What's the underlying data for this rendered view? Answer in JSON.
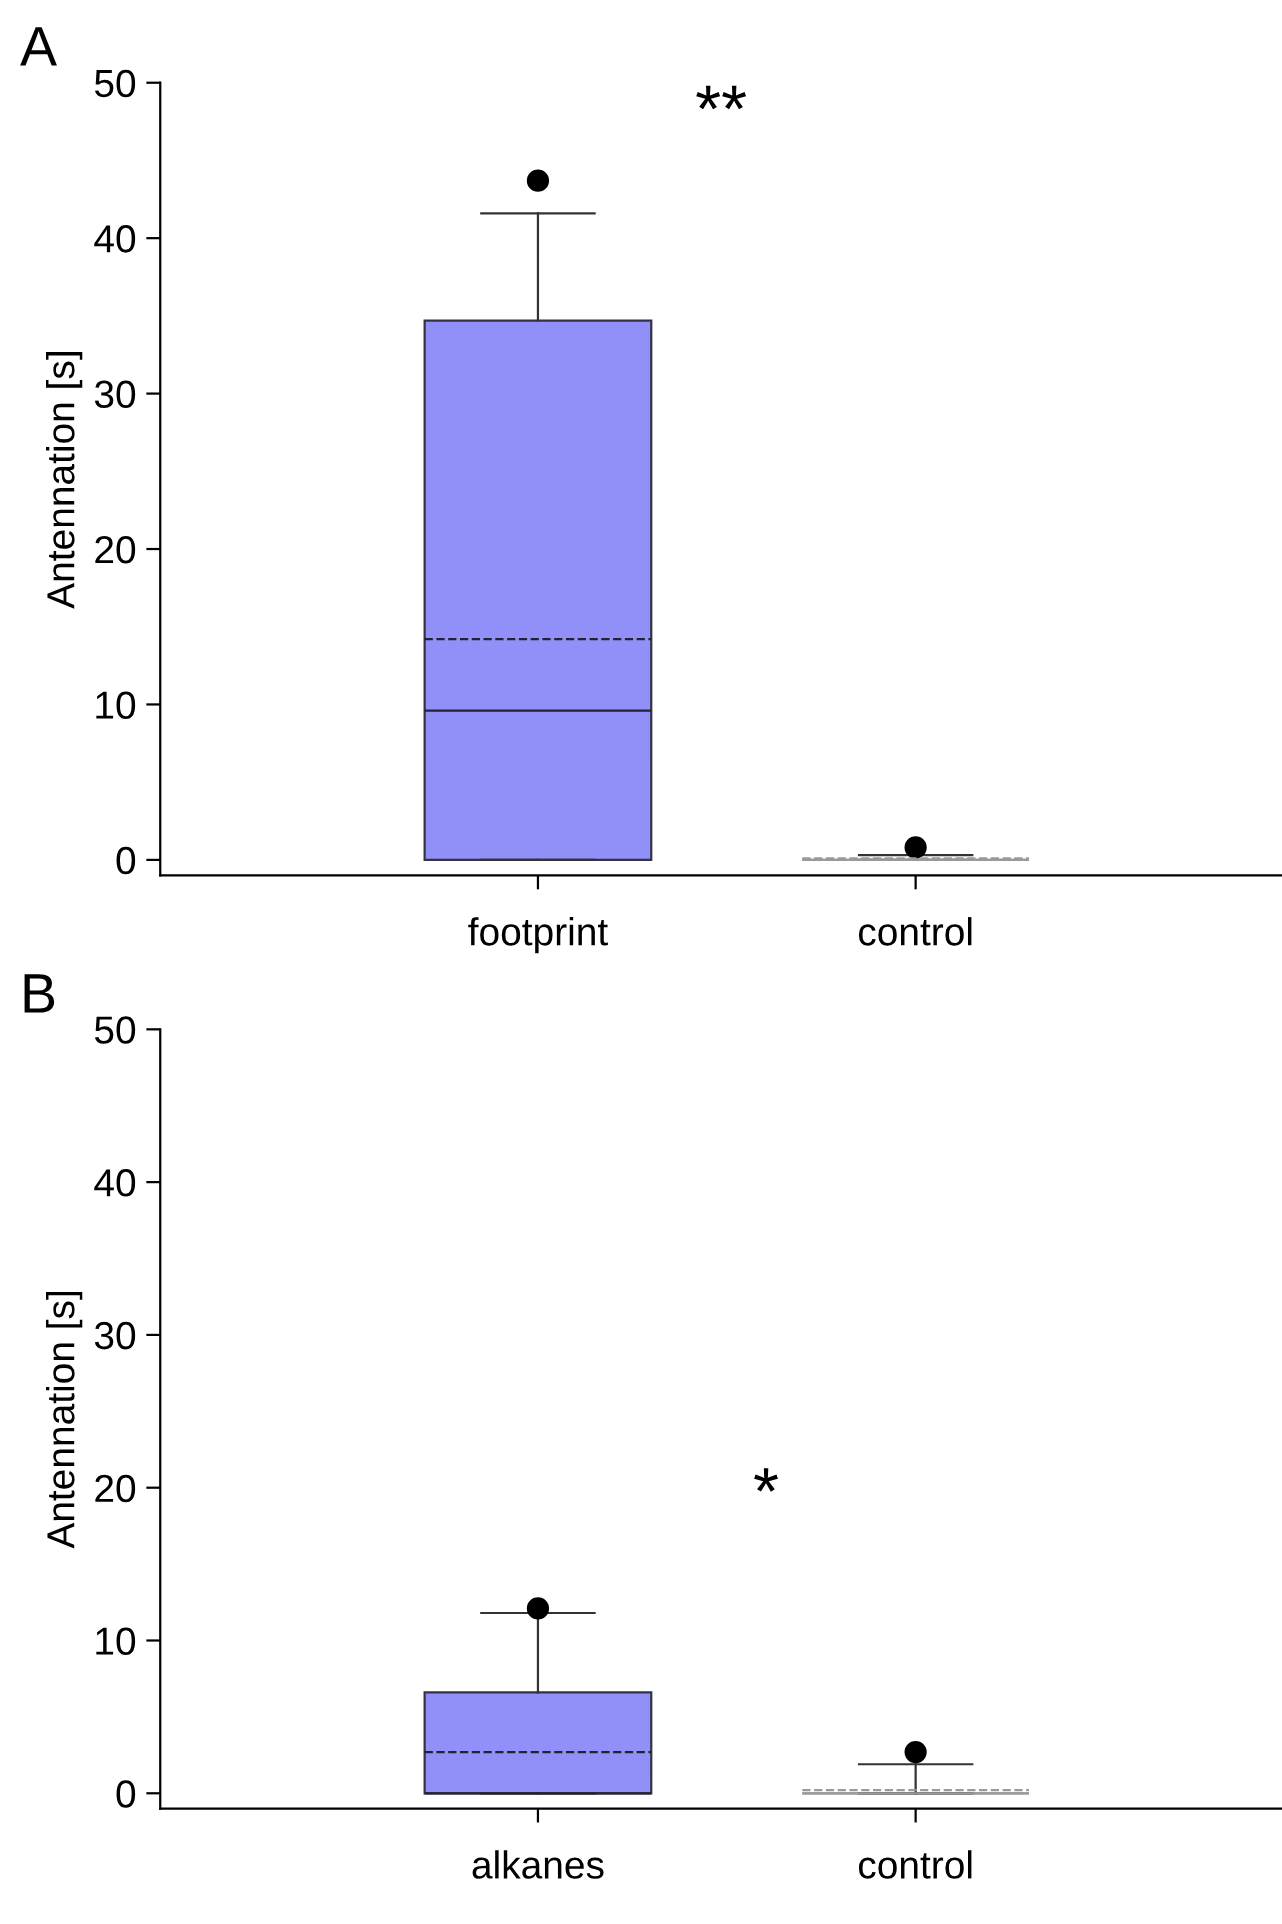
{
  "chart_data": [
    {
      "type": "box",
      "ylabel": "Antennation [s]",
      "categories": [
        "footprint",
        "control"
      ],
      "colors": [
        "#9090f8",
        "#999999"
      ],
      "ylim": [
        -1,
        50
      ],
      "yticks": [
        0,
        10,
        20,
        30,
        40,
        50
      ],
      "grid": false,
      "annotations": [
        "A",
        "**"
      ],
      "boxes": [
        {
          "low": 0,
          "q1": 0,
          "median": 9.6,
          "q3": 34.7,
          "high": 41.6,
          "mean": 14.2,
          "outliers": [
            43.7
          ]
        },
        {
          "low": 0,
          "q1": 0,
          "median": 0,
          "q3": 0,
          "high": 0.3,
          "mean": 0.1,
          "outliers": [
            0.8
          ]
        }
      ]
    },
    {
      "type": "box",
      "ylabel": "Antennation [s]",
      "categories": [
        "alkanes",
        "control"
      ],
      "colors": [
        "#9090f8",
        "#999999"
      ],
      "ylim": [
        -1,
        50
      ],
      "yticks": [
        0,
        10,
        20,
        30,
        40,
        50
      ],
      "grid": false,
      "annotations": [
        "B",
        "*"
      ],
      "boxes": [
        {
          "low": 0,
          "q1": 0,
          "median": 0,
          "q3": 6.6,
          "high": 11.8,
          "mean": 2.7,
          "outliers": [
            12.1
          ]
        },
        {
          "low": 0,
          "q1": 0,
          "median": 0,
          "q3": 0,
          "high": 1.9,
          "mean": 0.2,
          "outliers": [
            2.7
          ]
        }
      ]
    }
  ]
}
